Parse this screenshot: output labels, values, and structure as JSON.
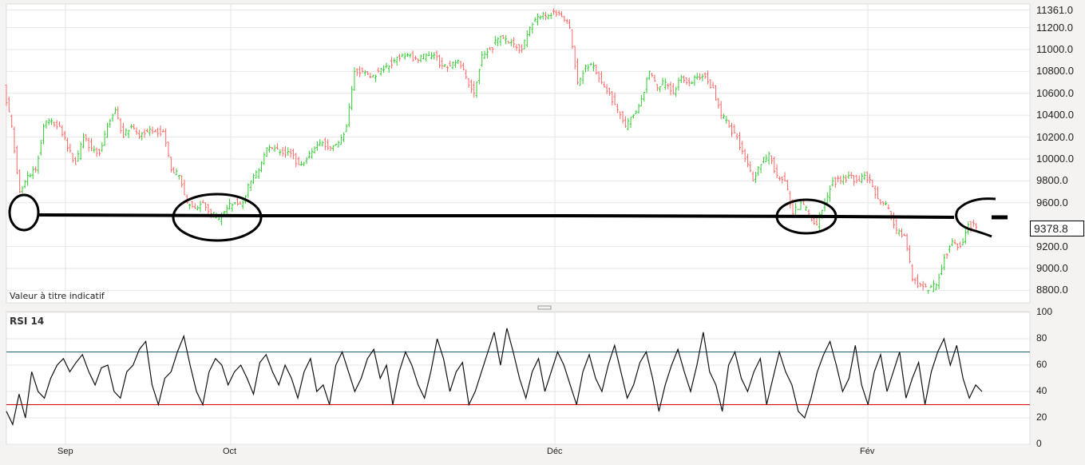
{
  "chart_data": [
    {
      "type": "candlestick",
      "note_label": "Valeur à titre indicatif",
      "y_ticks": [
        "11361.0",
        "11200.0",
        "11000.0",
        "10800.0",
        "10600.0",
        "10400.0",
        "10200.0",
        "10000.0",
        "9800.0",
        "9600.0",
        "9200.0",
        "9000.0",
        "8800.0"
      ],
      "last_value": "9378.8",
      "ylim": [
        8750,
        11400
      ],
      "x_ticks": [
        "Sep",
        "Oct",
        "Déc",
        "Fév"
      ],
      "up_color": "#33cc33",
      "down_color": "#ff6666",
      "close": [
        10650,
        10300,
        9700,
        9850,
        9900,
        10300,
        10350,
        10300,
        10100,
        9950,
        10200,
        10100,
        10050,
        10300,
        10450,
        10200,
        10300,
        10200,
        10250,
        10250,
        10250,
        9900,
        9850,
        9600,
        9550,
        9600,
        9500,
        9450,
        9550,
        9600,
        9600,
        9800,
        9900,
        10100,
        10100,
        10050,
        10050,
        9950,
        10000,
        10100,
        10150,
        10100,
        10150,
        10300,
        10800,
        10800,
        10750,
        10800,
        10850,
        10900,
        10950,
        10950,
        10900,
        10950,
        10950,
        10850,
        10850,
        10900,
        10750,
        10600,
        10950,
        11000,
        11100,
        11100,
        11050,
        11000,
        11200,
        11300,
        11300,
        11350,
        11300,
        11200,
        10700,
        10850,
        10850,
        10700,
        10600,
        10450,
        10300,
        10400,
        10550,
        10800,
        10650,
        10700,
        10600,
        10750,
        10700,
        10750,
        10750,
        10650,
        10400,
        10300,
        10200,
        10000,
        9800,
        9950,
        10050,
        9850,
        9800,
        9500,
        9600,
        9500,
        9400,
        9600,
        9800,
        9800,
        9850,
        9800,
        9850,
        9750,
        9600,
        9550,
        9350,
        9300,
        8900,
        8850,
        8800,
        8850,
        9100,
        9250,
        9200,
        9400,
        9378.8
      ],
      "annotations": "hand-drawn support line near 9500 with circled zones"
    },
    {
      "type": "line",
      "title": "RSI 14",
      "ylim": [
        0,
        100
      ],
      "y_ticks": [
        "100",
        "80",
        "60",
        "40",
        "20",
        "0"
      ],
      "levels": {
        "overbought": 70,
        "oversold": 30
      },
      "overbought_color": "#1f5f6f",
      "oversold_color": "#dd0000",
      "values": [
        25,
        15,
        38,
        20,
        55,
        40,
        35,
        50,
        60,
        65,
        55,
        62,
        68,
        55,
        45,
        58,
        60,
        40,
        35,
        55,
        60,
        72,
        78,
        45,
        30,
        50,
        55,
        70,
        82,
        60,
        40,
        30,
        55,
        65,
        60,
        45,
        55,
        60,
        50,
        38,
        62,
        68,
        55,
        45,
        60,
        50,
        35,
        55,
        65,
        40,
        45,
        30,
        60,
        70,
        55,
        40,
        50,
        65,
        72,
        50,
        60,
        30,
        55,
        70,
        60,
        45,
        35,
        55,
        80,
        65,
        40,
        55,
        62,
        30,
        40,
        55,
        70,
        85,
        60,
        88,
        70,
        50,
        35,
        55,
        65,
        40,
        55,
        70,
        60,
        45,
        30,
        55,
        68,
        50,
        40,
        60,
        75,
        55,
        35,
        45,
        62,
        70,
        50,
        25,
        45,
        60,
        72,
        55,
        40,
        60,
        85,
        55,
        45,
        25,
        60,
        70,
        50,
        40,
        55,
        65,
        30,
        50,
        70,
        55,
        45,
        25,
        20,
        35,
        55,
        68,
        78,
        60,
        40,
        50,
        75,
        45,
        30,
        55,
        68,
        40,
        55,
        70,
        35,
        50,
        62,
        30,
        55,
        70,
        80,
        60,
        75,
        50,
        35,
        45,
        40
      ]
    }
  ]
}
